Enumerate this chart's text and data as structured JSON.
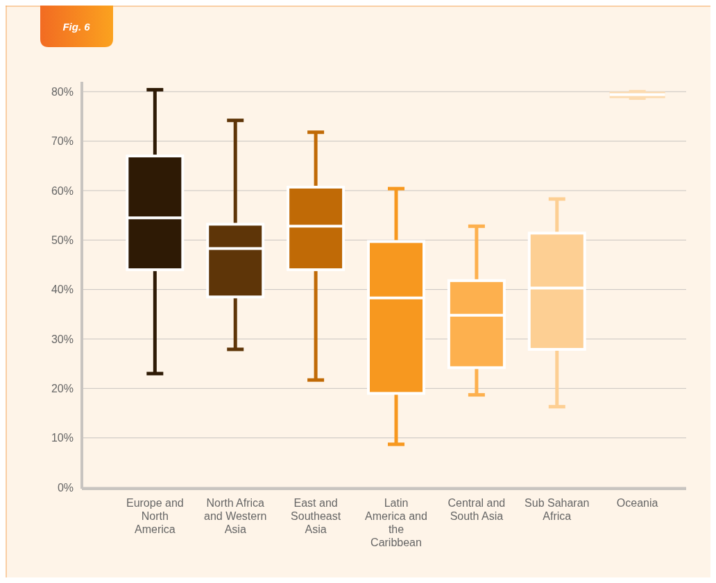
{
  "chart_data": {
    "type": "box",
    "title": "Fig. 6",
    "categories": [
      "Europe and North America",
      "North Africa and Western Asia",
      "East and Southeast Asia",
      "Latin America and the Caribbean",
      "Central and South Asia",
      "Sub Saharan Africa",
      "Oceania"
    ],
    "colors": [
      "#2e1a05",
      "#5e3508",
      "#c06a06",
      "#f7981f",
      "#fdb04e",
      "#fdcf93",
      "#fcdbb0"
    ],
    "boxes": [
      {
        "low": 23,
        "q1": 44,
        "median": 54.5,
        "q3": 67,
        "high": 80.4
      },
      {
        "low": 27.9,
        "q1": 38.5,
        "median": 48.3,
        "q3": 53.2,
        "high": 74.2
      },
      {
        "low": 21.7,
        "q1": 44,
        "median": 52.8,
        "q3": 60.7,
        "high": 71.8
      },
      {
        "low": 8.7,
        "q1": 19,
        "median": 38.3,
        "q3": 49.7,
        "high": 60.4
      },
      {
        "low": 18.7,
        "q1": 24.2,
        "median": 34.8,
        "q3": 41.8,
        "high": 52.8
      },
      {
        "low": 16.3,
        "q1": 27.9,
        "median": 40.3,
        "q3": 51.4,
        "high": 58.3
      },
      {
        "low": 78.7,
        "q1": 78.7,
        "median": 79.4,
        "q3": 80,
        "high": 80
      }
    ],
    "ylim": [
      0,
      82
    ],
    "yticks": [
      {
        "value": 0,
        "label": "0%"
      },
      {
        "value": 10,
        "label": "10%"
      },
      {
        "value": 20,
        "label": "20%"
      },
      {
        "value": 30,
        "label": "30%"
      },
      {
        "value": 40,
        "label": "40%"
      },
      {
        "value": 50,
        "label": "50%"
      },
      {
        "value": 60,
        "label": "60%"
      },
      {
        "value": 70,
        "label": "70%"
      },
      {
        "value": 80,
        "label": "80%"
      }
    ],
    "grid": "y"
  }
}
